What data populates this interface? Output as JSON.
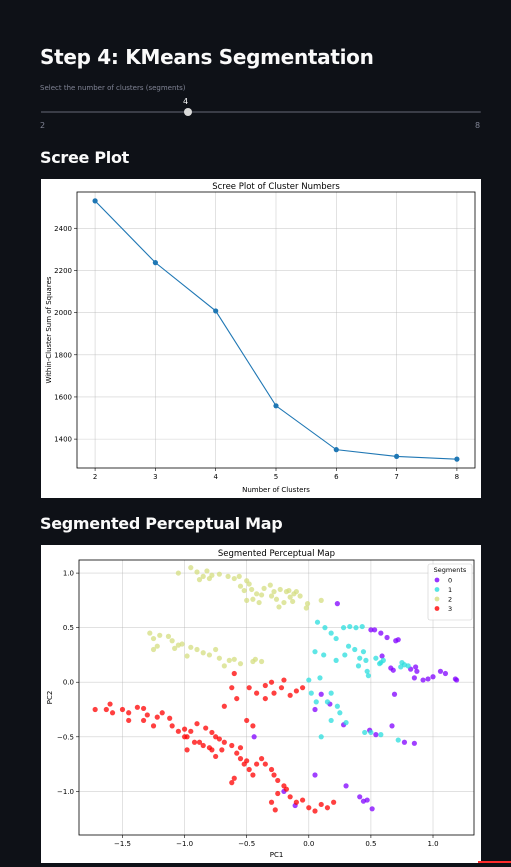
{
  "page": {
    "title": "Step 4: KMeans Segmentation",
    "scree_heading": "Scree Plot",
    "map_heading": "Segmented Perceptual Map"
  },
  "slider": {
    "label": "Select the number of clusters (segments)",
    "value": "4",
    "min": "2",
    "max": "8",
    "fraction": 0.3333
  },
  "chart_data": [
    {
      "type": "line",
      "title": "Scree Plot of Cluster Numbers",
      "xlabel": "Number of Clusters",
      "ylabel": "Within-Cluster Sum of Squares",
      "x": [
        2,
        3,
        4,
        5,
        6,
        7,
        8
      ],
      "y": [
        2530,
        2237,
        2008,
        1558,
        1350,
        1318,
        1305
      ],
      "xlim": [
        1.7,
        8.3
      ],
      "ylim": [
        1263,
        2572
      ],
      "xticks": [
        "2",
        "3",
        "4",
        "5",
        "6",
        "7",
        "8"
      ],
      "yticks": [
        "1400",
        "1600",
        "1800",
        "2000",
        "2200",
        "2400"
      ],
      "grid": true,
      "color": "#1f77b4"
    },
    {
      "type": "scatter",
      "title": "Segmented Perceptual Map",
      "xlabel": "PC1",
      "ylabel": "PC2",
      "xlim": [
        -1.85,
        1.33
      ],
      "ylim": [
        -1.4,
        1.12
      ],
      "xticks": [
        "−1.5",
        "−1.0",
        "−0.5",
        "0.0",
        "0.5",
        "1.0"
      ],
      "yticks": [
        "−1.0",
        "−0.5",
        "0.0",
        "0.5",
        "1.0"
      ],
      "grid": true,
      "legend": {
        "title": "Segments",
        "position": "top-right"
      },
      "series": [
        {
          "name": "0",
          "color": "#8000ff",
          "points": [
            [
              0.23,
              0.72
            ],
            [
              0.5,
              0.48
            ],
            [
              0.53,
              0.48
            ],
            [
              0.58,
              0.45
            ],
            [
              0.63,
              0.41
            ],
            [
              0.7,
              0.38
            ],
            [
              0.72,
              0.39
            ],
            [
              0.82,
              0.12
            ],
            [
              0.86,
              0.14
            ],
            [
              0.87,
              0.1
            ],
            [
              0.85,
              0.04
            ],
            [
              0.92,
              0.02
            ],
            [
              0.96,
              0.03
            ],
            [
              1.0,
              0.05
            ],
            [
              1.06,
              0.1
            ],
            [
              1.1,
              0.08
            ],
            [
              1.18,
              0.03
            ],
            [
              1.19,
              0.02
            ],
            [
              0.68,
              0.11
            ],
            [
              0.66,
              0.13
            ],
            [
              0.59,
              0.24
            ],
            [
              0.69,
              -0.11
            ],
            [
              0.67,
              -0.4
            ],
            [
              0.49,
              -0.44
            ],
            [
              0.54,
              -0.48
            ],
            [
              0.77,
              -0.55
            ],
            [
              0.85,
              -0.56
            ],
            [
              0.1,
              -0.11
            ],
            [
              0.05,
              -0.25
            ],
            [
              0.17,
              -0.2
            ],
            [
              0.28,
              -0.39
            ],
            [
              0.05,
              -0.85
            ],
            [
              0.3,
              -0.95
            ],
            [
              0.41,
              -1.05
            ],
            [
              0.44,
              -1.09
            ],
            [
              0.47,
              -1.08
            ],
            [
              0.51,
              -1.16
            ],
            [
              -0.2,
              -1.0
            ],
            [
              -0.11,
              -1.13
            ],
            [
              -0.44,
              -0.5
            ]
          ]
        },
        {
          "name": "1",
          "color": "#2adddd",
          "points": [
            [
              0.07,
              0.55
            ],
            [
              0.13,
              0.5
            ],
            [
              0.18,
              0.45
            ],
            [
              0.28,
              0.5
            ],
            [
              0.33,
              0.51
            ],
            [
              0.38,
              0.5
            ],
            [
              0.43,
              0.51
            ],
            [
              0.22,
              0.4
            ],
            [
              0.32,
              0.33
            ],
            [
              0.37,
              0.3
            ],
            [
              0.29,
              0.25
            ],
            [
              0.44,
              0.28
            ],
            [
              0.05,
              0.28
            ],
            [
              0.12,
              0.25
            ],
            [
              0.22,
              0.2
            ],
            [
              0.41,
              0.22
            ],
            [
              0.46,
              0.2
            ],
            [
              0.54,
              0.22
            ],
            [
              0.58,
              0.18
            ],
            [
              0.6,
              0.2
            ],
            [
              0.57,
              0.17
            ],
            [
              0.75,
              0.18
            ],
            [
              0.77,
              0.16
            ],
            [
              0.74,
              0.14
            ],
            [
              0.8,
              0.15
            ],
            [
              0.4,
              0.15
            ],
            [
              0.47,
              0.1
            ],
            [
              0.48,
              0.06
            ],
            [
              0.09,
              0.04
            ],
            [
              0.0,
              0.02
            ],
            [
              0.02,
              -0.1
            ],
            [
              0.18,
              -0.1
            ],
            [
              0.06,
              -0.18
            ],
            [
              0.15,
              -0.18
            ],
            [
              0.23,
              -0.22
            ],
            [
              0.25,
              -0.28
            ],
            [
              0.18,
              -0.35
            ],
            [
              0.3,
              -0.37
            ],
            [
              0.45,
              -0.46
            ],
            [
              0.5,
              -0.46
            ],
            [
              0.58,
              -0.48
            ],
            [
              0.72,
              -0.53
            ],
            [
              0.1,
              -0.5
            ]
          ]
        },
        {
          "name": "2",
          "color": "#d4dd80",
          "points": [
            [
              -1.05,
              1.0
            ],
            [
              -0.95,
              1.05
            ],
            [
              -0.9,
              1.01
            ],
            [
              -0.82,
              1.02
            ],
            [
              -0.85,
              0.97
            ],
            [
              -0.78,
              0.98
            ],
            [
              -0.72,
              0.99
            ],
            [
              -0.65,
              0.97
            ],
            [
              -0.6,
              0.95
            ],
            [
              -0.56,
              0.97
            ],
            [
              -0.5,
              0.93
            ],
            [
              -0.55,
              0.88
            ],
            [
              -0.52,
              0.84
            ],
            [
              -0.48,
              0.9
            ],
            [
              -0.46,
              0.85
            ],
            [
              -0.42,
              0.81
            ],
            [
              -0.38,
              0.8
            ],
            [
              -0.4,
              0.73
            ],
            [
              -0.45,
              0.76
            ],
            [
              -0.5,
              0.75
            ],
            [
              -0.36,
              0.86
            ],
            [
              -0.31,
              0.89
            ],
            [
              -0.28,
              0.83
            ],
            [
              -0.23,
              0.85
            ],
            [
              -0.18,
              0.83
            ],
            [
              -0.15,
              0.78
            ],
            [
              -0.12,
              0.81
            ],
            [
              -0.13,
              0.74
            ],
            [
              -0.2,
              0.73
            ],
            [
              -0.24,
              0.69
            ],
            [
              -0.07,
              0.79
            ],
            [
              -0.1,
              0.83
            ],
            [
              -0.02,
              0.68
            ],
            [
              -0.01,
              0.72
            ],
            [
              0.1,
              0.75
            ],
            [
              -0.88,
              0.94
            ],
            [
              -0.8,
              0.95
            ],
            [
              -0.3,
              0.79
            ],
            [
              -0.26,
              0.76
            ],
            [
              -0.16,
              0.84
            ],
            [
              -1.28,
              0.45
            ],
            [
              -1.25,
              0.4
            ],
            [
              -1.2,
              0.43
            ],
            [
              -1.1,
              0.38
            ],
            [
              -1.13,
              0.42
            ],
            [
              -1.02,
              0.35
            ],
            [
              -0.95,
              0.32
            ],
            [
              -0.98,
              0.24
            ],
            [
              -0.9,
              0.3
            ],
            [
              -0.85,
              0.27
            ],
            [
              -0.8,
              0.25
            ],
            [
              -0.75,
              0.3
            ],
            [
              -0.72,
              0.22
            ],
            [
              -0.68,
              0.15
            ],
            [
              -0.64,
              0.2
            ],
            [
              -0.6,
              0.21
            ],
            [
              -0.55,
              0.17
            ],
            [
              -0.45,
              0.19
            ],
            [
              -0.43,
              0.21
            ],
            [
              -0.38,
              0.19
            ],
            [
              -1.25,
              0.3
            ],
            [
              -1.22,
              0.33
            ],
            [
              -1.05,
              0.34
            ],
            [
              -1.08,
              0.31
            ]
          ]
        },
        {
          "name": "3",
          "color": "#ff0000",
          "points": [
            [
              -1.72,
              -0.25
            ],
            [
              -1.6,
              -0.2
            ],
            [
              -1.58,
              -0.28
            ],
            [
              -1.63,
              -0.25
            ],
            [
              -1.5,
              -0.25
            ],
            [
              -1.45,
              -0.28
            ],
            [
              -1.38,
              -0.23
            ],
            [
              -1.33,
              -0.24
            ],
            [
              -1.3,
              -0.3
            ],
            [
              -1.33,
              -0.35
            ],
            [
              -1.22,
              -0.32
            ],
            [
              -1.18,
              -0.28
            ],
            [
              -1.12,
              -0.33
            ],
            [
              -1.1,
              -0.4
            ],
            [
              -1.05,
              -0.45
            ],
            [
              -1.0,
              -0.43
            ],
            [
              -0.98,
              -0.5
            ],
            [
              -0.95,
              -0.45
            ],
            [
              -0.9,
              -0.38
            ],
            [
              -0.83,
              -0.42
            ],
            [
              -0.78,
              -0.46
            ],
            [
              -0.75,
              -0.5
            ],
            [
              -0.72,
              -0.52
            ],
            [
              -0.68,
              -0.55
            ],
            [
              -0.62,
              -0.58
            ],
            [
              -0.58,
              -0.65
            ],
            [
              -0.55,
              -0.6
            ],
            [
              -0.5,
              -0.72
            ],
            [
              -0.48,
              -0.8
            ],
            [
              -0.45,
              -0.85
            ],
            [
              -0.42,
              -0.75
            ],
            [
              -0.38,
              -0.7
            ],
            [
              -0.35,
              -0.75
            ],
            [
              -0.3,
              -0.8
            ],
            [
              -0.28,
              -0.85
            ],
            [
              -0.25,
              -0.9
            ],
            [
              -0.2,
              -0.95
            ],
            [
              -0.18,
              -0.98
            ],
            [
              -0.15,
              -1.05
            ],
            [
              -0.1,
              -1.1
            ],
            [
              -0.05,
              -1.08
            ],
            [
              0.0,
              -1.15
            ],
            [
              0.05,
              -1.18
            ],
            [
              0.1,
              -1.12
            ],
            [
              0.15,
              -1.15
            ],
            [
              0.2,
              -1.1
            ],
            [
              -0.25,
              -1.02
            ],
            [
              -0.3,
              -1.1
            ],
            [
              -0.27,
              -1.17
            ],
            [
              -0.6,
              -0.88
            ],
            [
              -0.62,
              -0.92
            ],
            [
              -0.75,
              -0.68
            ],
            [
              -0.78,
              -0.62
            ],
            [
              -0.85,
              -0.58
            ],
            [
              -0.92,
              -0.55
            ],
            [
              -0.98,
              -0.62
            ],
            [
              -0.55,
              -0.7
            ],
            [
              -0.52,
              -0.75
            ],
            [
              -0.62,
              -0.05
            ],
            [
              -0.48,
              -0.05
            ],
            [
              -0.42,
              -0.1
            ],
            [
              -0.35,
              -0.15
            ],
            [
              -0.28,
              -0.1
            ],
            [
              -0.22,
              -0.05
            ],
            [
              -0.15,
              -0.12
            ],
            [
              -0.1,
              -0.08
            ],
            [
              -0.05,
              -0.05
            ],
            [
              -0.2,
              0.02
            ],
            [
              -0.35,
              -0.03
            ],
            [
              -0.6,
              0.08
            ],
            [
              -0.3,
              0.0
            ],
            [
              -0.68,
              -0.22
            ],
            [
              -0.58,
              -0.15
            ],
            [
              -0.5,
              -0.35
            ],
            [
              -0.45,
              -0.4
            ],
            [
              -0.8,
              -0.6
            ],
            [
              -0.7,
              -0.62
            ],
            [
              -0.88,
              -0.55
            ],
            [
              -1.0,
              -0.5
            ],
            [
              -1.45,
              -0.35
            ],
            [
              -1.25,
              -0.4
            ]
          ]
        }
      ]
    }
  ]
}
